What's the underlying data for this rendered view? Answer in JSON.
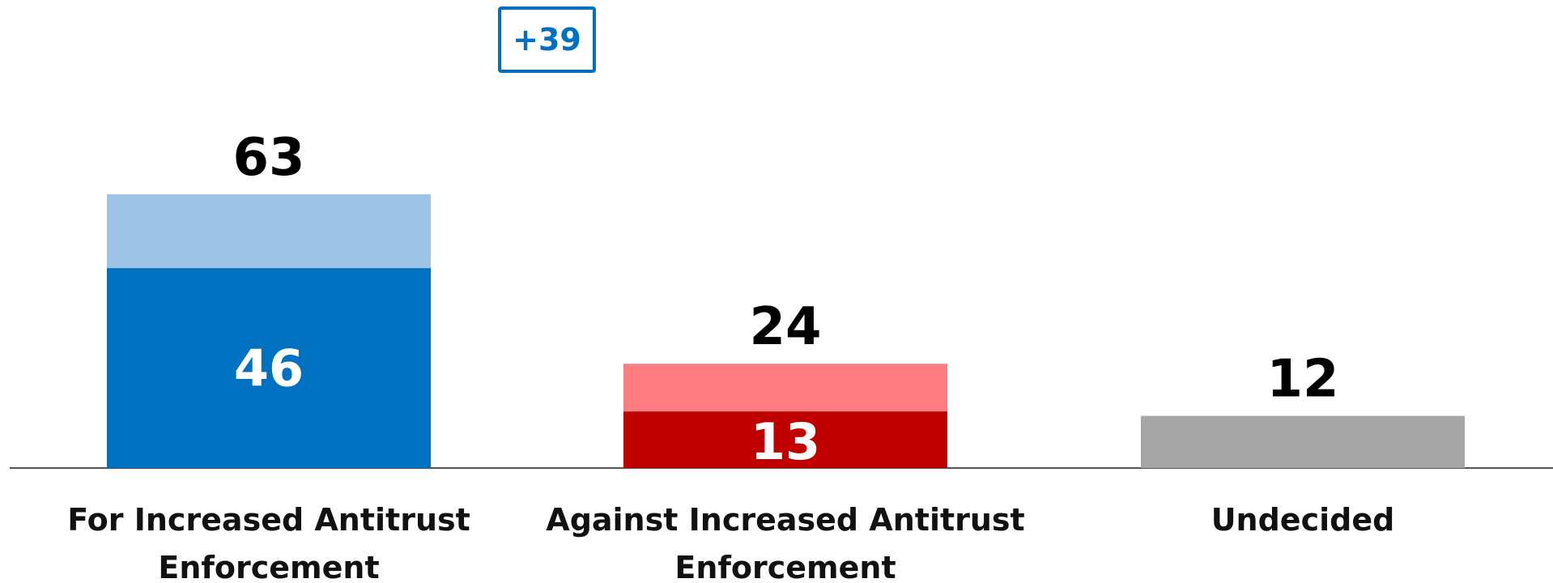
{
  "chart_data": {
    "type": "bar",
    "categories": [
      [
        "For Increased Antitrust",
        "Enforcement"
      ],
      [
        "Against Increased Antitrust",
        "Enforcement"
      ],
      [
        "Undecided"
      ]
    ],
    "totals": [
      63,
      24,
      12
    ],
    "inner_values": [
      46,
      13,
      null
    ],
    "ylim": [
      0,
      63
    ],
    "grid": false,
    "legend": "none",
    "difference_label": "+39"
  },
  "colors": {
    "for_total": "#9fc3e7",
    "for_inner": "#0070c0",
    "against_total": "#ff7c80",
    "against_inner": "#c00000",
    "undecided": "#a6a6a6",
    "baseline": "#555555",
    "difference": "#0070c0"
  }
}
